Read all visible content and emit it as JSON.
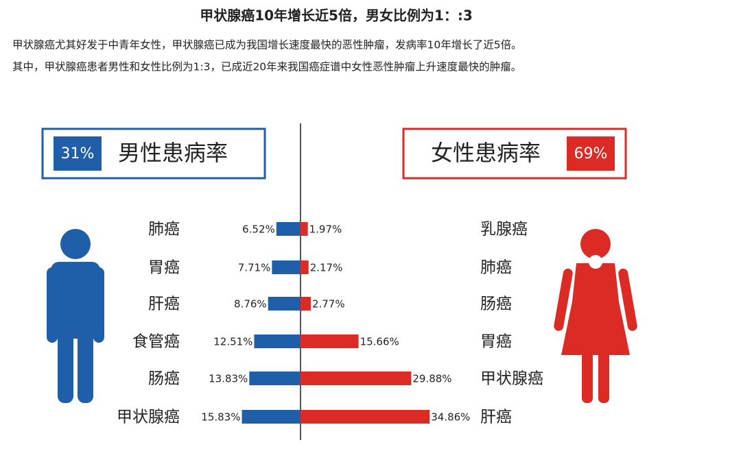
{
  "chart_data": {
    "type": "butterfly",
    "title": "甲状腺癌10年增长近5倍，男女比例为1：:3",
    "description": [
      "甲状腺癌尤其好发于中青年女性，甲状腺癌已成为我国增长速度最快的恶性肿瘤，发病率10年增长了近5倍。",
      "其中，甲状腺癌患者男性和女性比例为1:3，已成近20年来我国癌症谱中女性恶性肿瘤上升速度最快的肿瘤。"
    ],
    "series": [
      {
        "name": "男性患病率",
        "share_label": "31%",
        "color": "#1f5ea8",
        "categories": [
          "肺癌",
          "胃癌",
          "肝癌",
          "食管癌",
          "肠癌",
          "甲状腺癌"
        ],
        "values": [
          6.52,
          7.71,
          8.76,
          12.51,
          13.83,
          15.83
        ],
        "value_labels": [
          "6.52%",
          "7.71%",
          "8.76%",
          "12.51%",
          "13.83%",
          "15.83%"
        ]
      },
      {
        "name": "女性患病率",
        "share_label": "69%",
        "color": "#dc2a24",
        "categories": [
          "乳腺癌",
          "肺癌",
          "肠癌",
          "胃癌",
          "甲状腺癌",
          "肝癌"
        ],
        "values": [
          1.97,
          2.17,
          2.77,
          15.66,
          29.88,
          34.86
        ],
        "value_labels": [
          "1.97%",
          "2.17%",
          "2.77%",
          "15.66%",
          "29.88%",
          "34.86%"
        ]
      }
    ]
  }
}
